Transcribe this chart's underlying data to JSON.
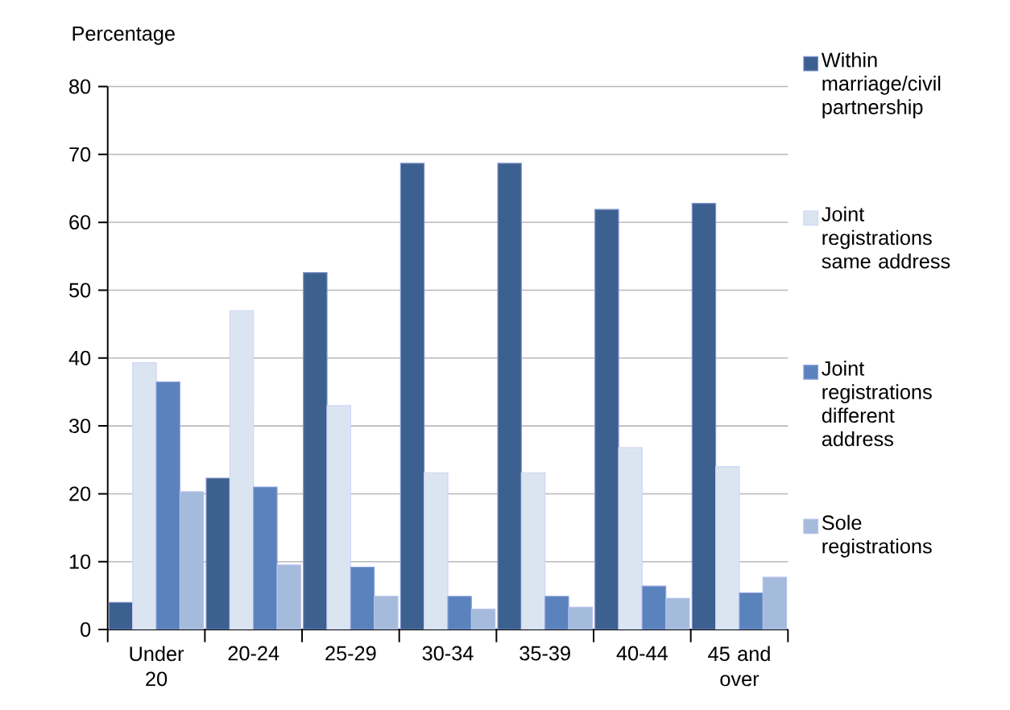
{
  "chart_data": {
    "type": "bar",
    "ylabel": "Percentage",
    "categories": [
      "Under 20",
      "20-24",
      "25-29",
      "30-34",
      "35-39",
      "40-44",
      "45 and over"
    ],
    "series": [
      {
        "name": "Within marriage/civil partnership",
        "color": "#3c6090",
        "values": [
          4.0,
          22.3,
          52.6,
          68.7,
          68.7,
          61.9,
          62.8
        ]
      },
      {
        "name": "Joint registrations same address",
        "color": "#dbe5f1",
        "values": [
          39.3,
          47.0,
          33.0,
          23.1,
          23.1,
          26.8,
          24.0
        ]
      },
      {
        "name": "Joint registrations different address",
        "color": "#5a82bd",
        "values": [
          36.5,
          21.0,
          9.2,
          4.9,
          4.9,
          6.4,
          5.4
        ]
      },
      {
        "name": "Sole registrations",
        "color": "#a4bbdc",
        "values": [
          20.3,
          9.5,
          4.9,
          3.0,
          3.3,
          4.6,
          7.7
        ]
      }
    ],
    "ylim": [
      0,
      80
    ],
    "yticks": [
      0,
      10,
      20,
      30,
      40,
      50,
      60,
      70,
      80
    ],
    "grid": "y",
    "legend": "right"
  }
}
